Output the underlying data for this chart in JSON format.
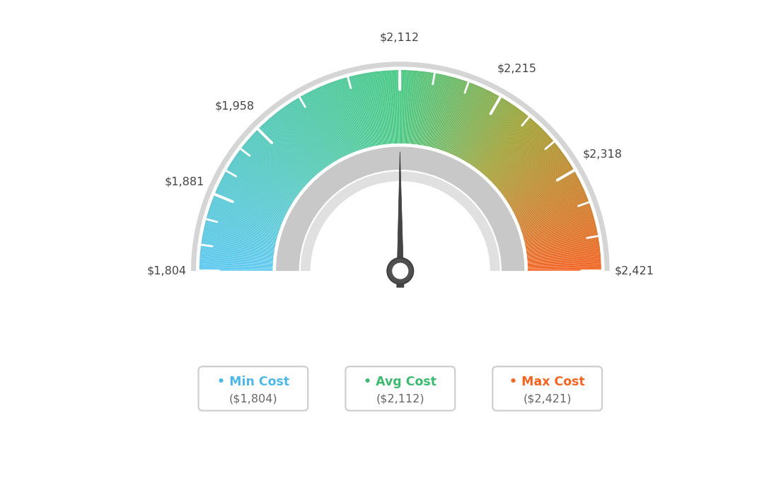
{
  "min_val": 1804,
  "max_val": 2421,
  "avg_val": 2112,
  "tick_labels": [
    "$1,804",
    "$1,881",
    "$1,958",
    "$2,112",
    "$2,215",
    "$2,318",
    "$2,421"
  ],
  "tick_values": [
    1804,
    1881,
    1958,
    2112,
    2215,
    2318,
    2421
  ],
  "legend": [
    {
      "label": "Min Cost",
      "value": "($1,804)",
      "color": "#4db8e8"
    },
    {
      "label": "Avg Cost",
      "value": "($2,112)",
      "color": "#3dba6f"
    },
    {
      "label": "Max Cost",
      "value": "($2,421)",
      "color": "#f26522"
    }
  ],
  "bg_color": "#ffffff",
  "needle_color": "#454545"
}
